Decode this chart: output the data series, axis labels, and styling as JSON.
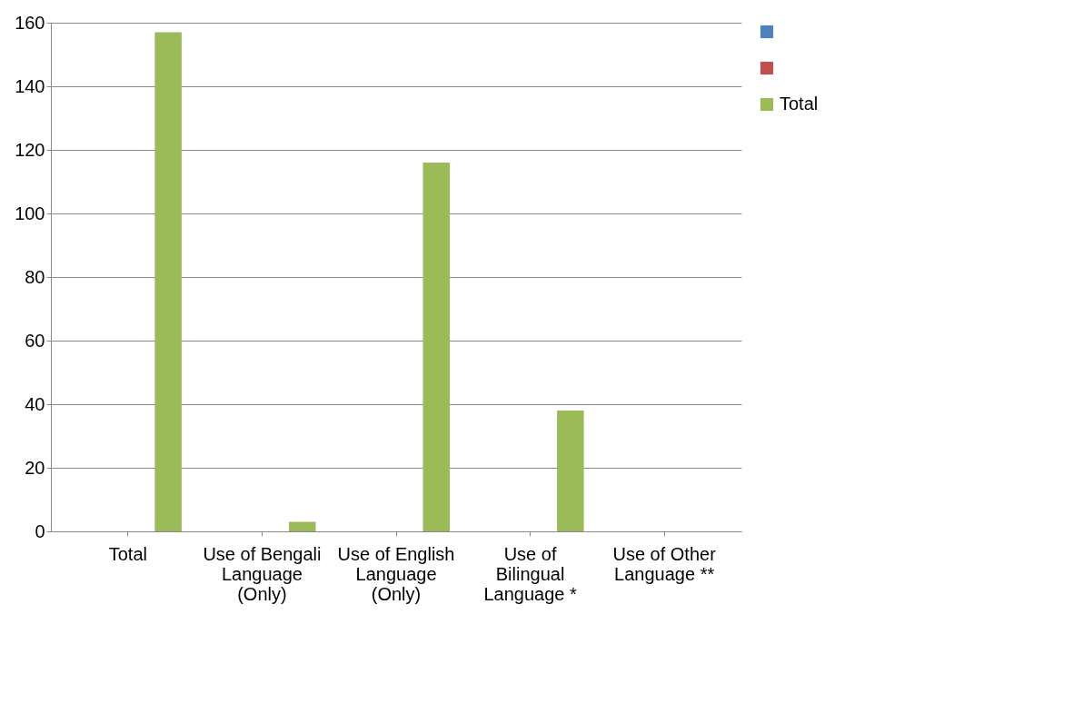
{
  "chart_data": {
    "type": "bar",
    "categories": [
      "Total",
      "Use of Bengali Language (Only)",
      "Use of English Language (Only)",
      "Use of Bilingual Language *",
      "Use of Other Language **"
    ],
    "series": [
      {
        "color": "#4f81bd",
        "values": [
          0,
          null,
          null,
          null,
          null
        ]
      },
      {
        "color": "#c0504d",
        "values": [
          0,
          null,
          null,
          null,
          null
        ]
      },
      {
        "name": "Total",
        "color": "#9bbb59",
        "values": [
          157,
          3,
          116,
          38,
          0
        ]
      }
    ],
    "ylim": [
      0,
      160
    ],
    "yticks": [
      0,
      20,
      40,
      60,
      80,
      100,
      120,
      140,
      160
    ],
    "grid": "y",
    "legend": "right"
  }
}
